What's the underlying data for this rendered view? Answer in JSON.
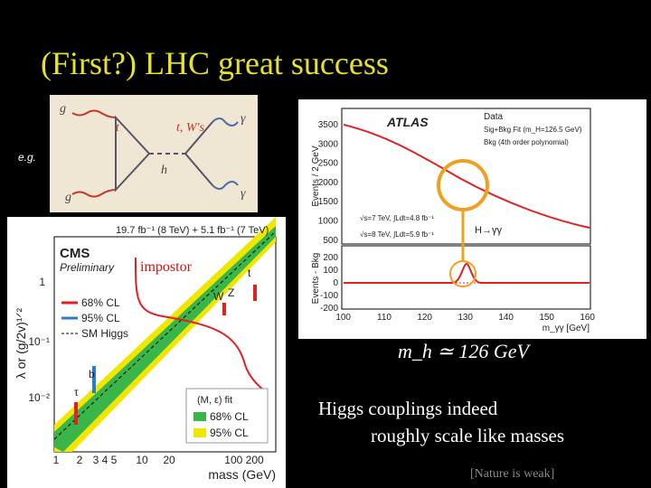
{
  "title": "(First?) LHC great success",
  "eg_label": "e.g.",
  "feynman": {
    "labels": [
      "g",
      "g",
      "t",
      "t, W's",
      "h",
      "γ",
      "γ"
    ]
  },
  "cms_plot": {
    "lumi": "19.7 fb⁻¹ (8 TeV) + 5.1 fb⁻¹ (7 TeV)",
    "experiment": "CMS",
    "status": "Preliminary",
    "y_label": "λ or (g/2v)¹ᐟ²",
    "x_label": "mass (GeV)",
    "yticks": [
      "1",
      "10⁻¹",
      "10⁻²"
    ],
    "xticks": [
      "1",
      "2",
      "3 4 5",
      "10",
      "20",
      "100 200"
    ],
    "legend": [
      "68% CL",
      "95% CL",
      "SM Higgs"
    ],
    "particles": [
      "τ",
      "b",
      "W",
      "Z",
      "t"
    ],
    "inset": {
      "title": "(M, ε) fit",
      "items": [
        "68% CL",
        "95% CL"
      ]
    }
  },
  "atlas_plot": {
    "experiment": "ATLAS",
    "legend": [
      "Data",
      "Sig+Bkg Fit (m_H=126.5 GeV)",
      "Bkg (4th order polynomial)"
    ],
    "conditions": [
      "√s=7 TeV, ∫Ldt=4.8 fb⁻¹",
      "√s=8 TeV, ∫Ldt=5.9 fb⁻¹"
    ],
    "channel": "H→γγ",
    "y_label_top": "Events / 2 GeV",
    "y_label_bottom": "Events - Bkg",
    "x_label": "m_γγ [GeV]",
    "yticks_top": [
      "3500",
      "3000",
      "2500",
      "2000",
      "1500",
      "1000",
      "500"
    ],
    "yticks_bottom": [
      "200",
      "100",
      "0",
      "-100",
      "-200"
    ],
    "xticks": [
      "100",
      "110",
      "120",
      "130",
      "140",
      "150",
      "160"
    ]
  },
  "impostor": "impostor",
  "mass_formula": "m_h ≃ 126 GeV",
  "caption": [
    "Higgs couplings indeed",
    "roughly scale like masses"
  ],
  "footnote": "[Nature is weak]"
}
